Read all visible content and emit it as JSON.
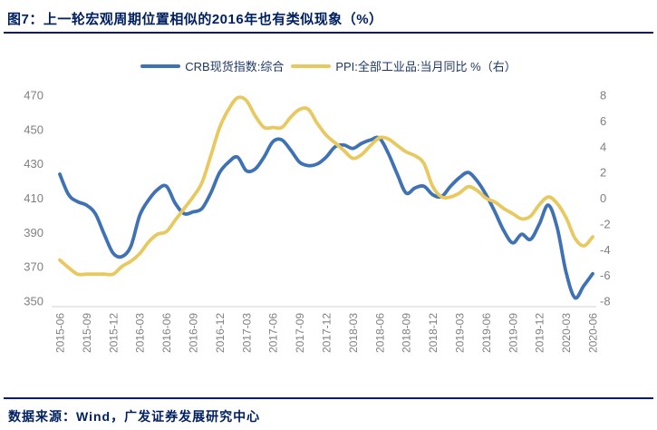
{
  "header": {
    "title": "图7：上一轮宏观周期位置相似的2016年也有类似现象（%）"
  },
  "footer": {
    "source": "数据来源：Wind，广发证券发展研究中心"
  },
  "colors": {
    "accent_navy": "#002060",
    "legend_text": "#1F3864",
    "crb_blue": "#3F72B5",
    "ppi_yellow": "#E8C95F",
    "axis_text": "#7F7F7F",
    "axis_line": "#D9D9D9"
  },
  "chart_data": {
    "type": "line",
    "title": "图7：上一轮宏观周期位置相似的2016年也有类似现象（%）",
    "grid": false,
    "legend_position": "top-center",
    "x": [
      "2015-06",
      "2015-07",
      "2015-08",
      "2015-09",
      "2015-10",
      "2015-11",
      "2015-12",
      "2016-01",
      "2016-02",
      "2016-03",
      "2016-04",
      "2016-05",
      "2016-06",
      "2016-07",
      "2016-08",
      "2016-09",
      "2016-10",
      "2016-11",
      "2016-12",
      "2017-01",
      "2017-02",
      "2017-03",
      "2017-04",
      "2017-05",
      "2017-06",
      "2017-07",
      "2017-08",
      "2017-09",
      "2017-10",
      "2017-11",
      "2017-12",
      "2018-01",
      "2018-02",
      "2018-03",
      "2018-04",
      "2018-05",
      "2018-06",
      "2018-07",
      "2018-08",
      "2018-09",
      "2018-10",
      "2018-11",
      "2018-12",
      "2019-01",
      "2019-02",
      "2019-03",
      "2019-04",
      "2019-05",
      "2019-06",
      "2019-07",
      "2019-08",
      "2019-09",
      "2019-10",
      "2019-11",
      "2019-12",
      "2020-01",
      "2020-02",
      "2020-03",
      "2020-04",
      "2020-05",
      "2020-06"
    ],
    "x_tick_labels": [
      "2015-06",
      "2015-09",
      "2015-12",
      "2016-03",
      "2016-06",
      "2016-09",
      "2016-12",
      "2017-03",
      "2017-06",
      "2017-09",
      "2017-12",
      "2018-03",
      "2018-06",
      "2018-09",
      "2018-12",
      "2019-03",
      "2019-06",
      "2019-09",
      "2019-12",
      "2020-03",
      "2020-06"
    ],
    "series": [
      {
        "name": "CRB现货指数:综合",
        "axis": "left",
        "color": "#3F72B5",
        "values": [
          424,
          412,
          408,
          406,
          401,
          389,
          378,
          376,
          382,
          400,
          409,
          415,
          417,
          407,
          401,
          402,
          404,
          413,
          425,
          431,
          434,
          426,
          427,
          434,
          443,
          444,
          438,
          431,
          429,
          430,
          434,
          440,
          441,
          439,
          442,
          444,
          445,
          436,
          424,
          413,
          416,
          417,
          412,
          411,
          417,
          422,
          425,
          420,
          412,
          402,
          391,
          384,
          389,
          386,
          395,
          406,
          393,
          367,
          352,
          359,
          366
        ]
      },
      {
        "name": "PPI:全部工业品:当月同比 %（右）",
        "axis": "right",
        "color": "#E8C95F",
        "values": [
          -4.8,
          -5.4,
          -5.9,
          -5.9,
          -5.9,
          -5.9,
          -5.9,
          -5.3,
          -4.9,
          -4.3,
          -3.4,
          -2.8,
          -2.6,
          -1.7,
          -0.8,
          0.1,
          1.2,
          3.3,
          5.5,
          6.9,
          7.8,
          7.6,
          6.4,
          5.5,
          5.5,
          5.5,
          6.3,
          6.9,
          6.9,
          5.8,
          4.9,
          4.3,
          3.7,
          3.1,
          3.4,
          4.1,
          4.7,
          4.6,
          4.1,
          3.6,
          3.3,
          2.7,
          0.9,
          0.1,
          0.1,
          0.4,
          0.9,
          0.6,
          0.0,
          -0.3,
          -0.8,
          -1.2,
          -1.6,
          -1.4,
          -0.5,
          0.1,
          -0.4,
          -1.5,
          -3.1,
          -3.7,
          -3.0
        ]
      }
    ],
    "left_axis": {
      "min": 350,
      "max": 470,
      "ticks": [
        350,
        370,
        390,
        410,
        430,
        450,
        470
      ]
    },
    "right_axis": {
      "min": -8,
      "max": 8,
      "ticks": [
        -8,
        -6,
        -4,
        -2,
        0,
        2,
        4,
        6,
        8
      ]
    }
  }
}
